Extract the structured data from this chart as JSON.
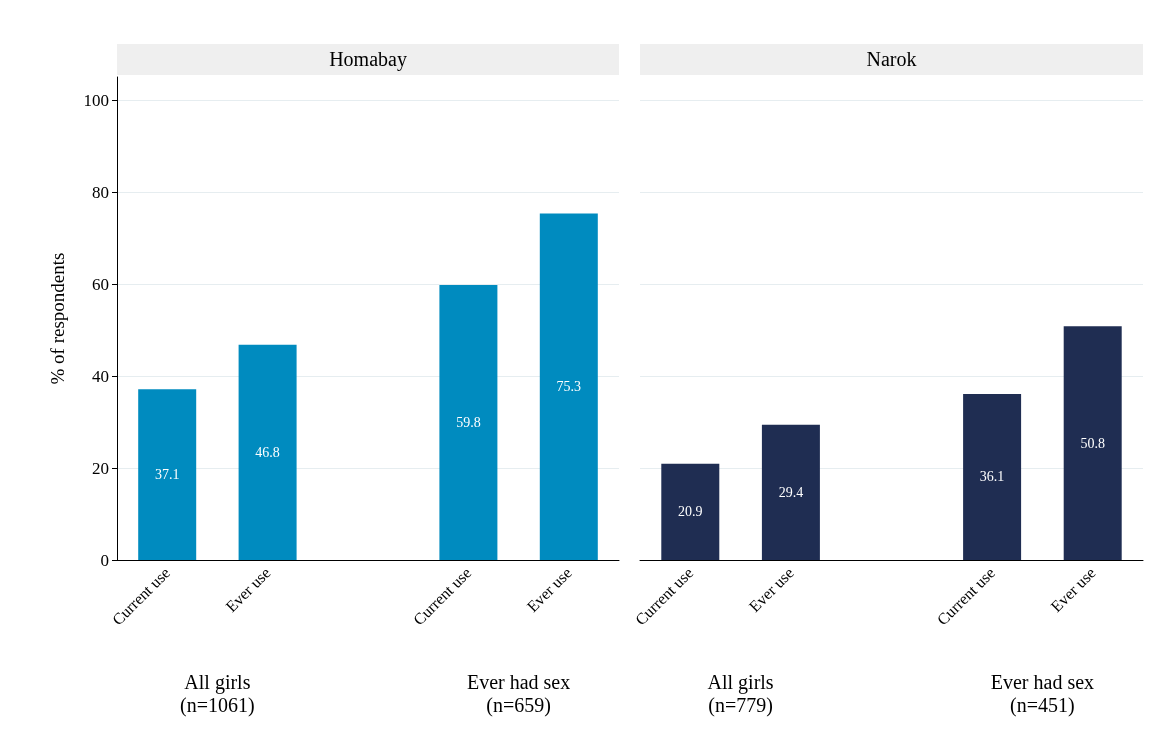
{
  "chart_data": [
    {
      "type": "bar",
      "title": "Homabay",
      "ylabel": "% of respondents",
      "categories": [
        "Current use",
        "Ever use",
        null,
        "Current use",
        "Ever use"
      ],
      "values": [
        37.1,
        46.8,
        null,
        59.8,
        75.3
      ],
      "color": "#008bbf",
      "ylim": [
        0,
        105
      ],
      "yticks": [
        0,
        20,
        40,
        60,
        80,
        100
      ],
      "grid": "y",
      "data_labels": true,
      "annotations": [
        "All girls\n(n=1061)",
        "Ever had sex\n(n=659)"
      ]
    },
    {
      "type": "bar",
      "title": "Narok",
      "categories": [
        "Current use",
        "Ever use",
        null,
        "Current use",
        "Ever use"
      ],
      "values": [
        20.9,
        29.4,
        null,
        36.1,
        50.8
      ],
      "color": "#1f2d52",
      "ylim": [
        0,
        100
      ],
      "yticks": [
        0,
        20,
        40,
        60,
        80,
        100
      ],
      "grid": "y",
      "data_labels": true,
      "tick_labels": "x",
      "annotations": [
        "All girls\n(n=779)",
        "Ever had sex\n(n=451)"
      ]
    }
  ]
}
